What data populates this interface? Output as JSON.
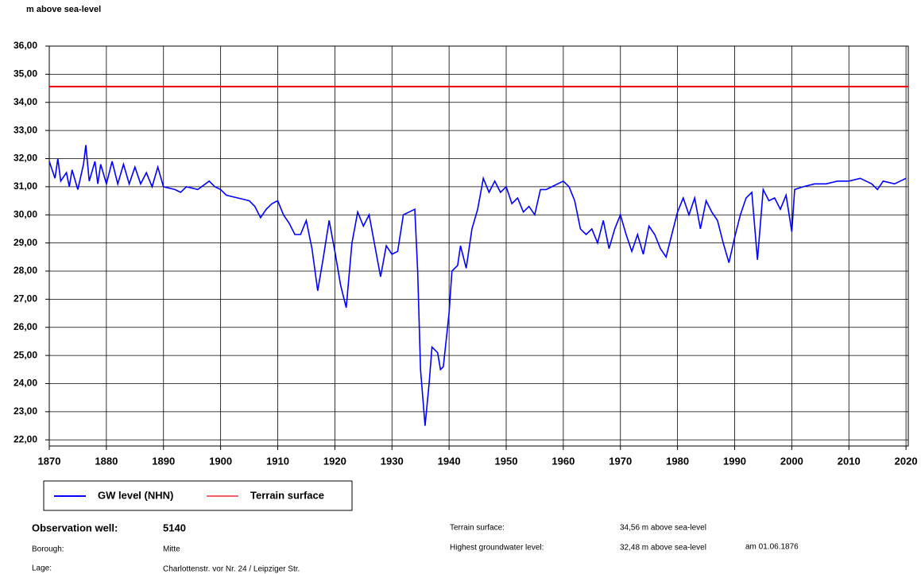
{
  "chart_data": {
    "type": "line",
    "y_label": "m above sea-level",
    "xlim": [
      1870,
      2020.4
    ],
    "ylim": [
      21.78,
      36
    ],
    "xticks": [
      1870,
      1880,
      1890,
      1900,
      1910,
      1920,
      1930,
      1940,
      1950,
      1960,
      1970,
      1980,
      1990,
      2000,
      2010,
      2020
    ],
    "yticks": [
      {
        "value": 22,
        "label": "22,00"
      },
      {
        "value": 23,
        "label": "23,00"
      },
      {
        "value": 24,
        "label": "24,00"
      },
      {
        "value": 25,
        "label": "25,00"
      },
      {
        "value": 26,
        "label": "26,00"
      },
      {
        "value": 27,
        "label": "27,00"
      },
      {
        "value": 28,
        "label": "28,00"
      },
      {
        "value": 29,
        "label": "29,00"
      },
      {
        "value": 30,
        "label": "30,00"
      },
      {
        "value": 31,
        "label": "31,00"
      },
      {
        "value": 32,
        "label": "32,00"
      },
      {
        "value": 33,
        "label": "33,00"
      },
      {
        "value": 34,
        "label": "34,00"
      },
      {
        "value": 35,
        "label": "35,00"
      },
      {
        "value": 36,
        "label": "36,00"
      }
    ],
    "grid": true,
    "series": [
      {
        "name": "GW level (NHN)",
        "color": "#0000ff",
        "x": [
          1870,
          1871,
          1871.5,
          1872,
          1873,
          1873.5,
          1874,
          1875,
          1876,
          1876.4,
          1877,
          1878,
          1878.5,
          1879,
          1880,
          1881,
          1882,
          1883,
          1884,
          1885,
          1886,
          1887,
          1888,
          1889,
          1890,
          1892,
          1893,
          1894,
          1896,
          1898,
          1899,
          1900,
          1901,
          1903,
          1905,
          1906,
          1907,
          1908,
          1909,
          1910,
          1911,
          1912,
          1913,
          1914,
          1915,
          1916,
          1917,
          1918,
          1919,
          1920,
          1921,
          1922,
          1923,
          1924,
          1925,
          1926,
          1927,
          1928,
          1929,
          1930,
          1931,
          1932,
          1934,
          1934.5,
          1935,
          1935.8,
          1936.5,
          1937,
          1938,
          1938.5,
          1939,
          1940,
          1940.5,
          1941.5,
          1942,
          1943,
          1944,
          1945,
          1946,
          1947,
          1948,
          1949,
          1950,
          1951,
          1952,
          1953,
          1954,
          1955,
          1956,
          1957,
          1958,
          1960,
          1961,
          1962,
          1963,
          1964,
          1965,
          1966,
          1967,
          1968,
          1969,
          1970,
          1971,
          1972,
          1973,
          1974,
          1975,
          1976,
          1977,
          1978,
          1979,
          1980,
          1981,
          1982,
          1983,
          1984,
          1985,
          1986,
          1987,
          1988,
          1989,
          1990,
          1991,
          1992,
          1993,
          1994,
          1995,
          1996,
          1997,
          1998,
          1999,
          2000,
          2000.5,
          2002,
          2004,
          2006,
          2008,
          2010,
          2012,
          2014,
          2015,
          2016,
          2018,
          2020
        ],
        "values": [
          31.9,
          31.3,
          32.0,
          31.2,
          31.5,
          31.0,
          31.6,
          30.9,
          31.8,
          32.48,
          31.2,
          31.9,
          31.1,
          31.8,
          31.1,
          31.9,
          31.1,
          31.8,
          31.1,
          31.7,
          31.1,
          31.5,
          31.0,
          31.7,
          31.0,
          30.9,
          30.8,
          31.0,
          30.9,
          31.2,
          31.0,
          30.9,
          30.7,
          30.6,
          30.5,
          30.3,
          29.9,
          30.2,
          30.4,
          30.5,
          30.0,
          29.7,
          29.3,
          29.3,
          29.8,
          28.8,
          27.3,
          28.5,
          29.8,
          28.7,
          27.5,
          26.7,
          29.0,
          30.1,
          29.6,
          30.0,
          28.9,
          27.8,
          28.9,
          28.6,
          28.7,
          30.0,
          30.2,
          28.0,
          24.5,
          22.5,
          24.0,
          25.3,
          25.1,
          24.5,
          24.6,
          26.5,
          28.0,
          28.2,
          28.9,
          28.1,
          29.5,
          30.2,
          31.3,
          30.8,
          31.2,
          30.8,
          31.0,
          30.4,
          30.6,
          30.1,
          30.3,
          30.0,
          30.9,
          30.9,
          31.0,
          31.2,
          31.0,
          30.5,
          29.5,
          29.3,
          29.5,
          29.0,
          29.8,
          28.8,
          29.5,
          30.0,
          29.3,
          28.7,
          29.3,
          28.6,
          29.6,
          29.3,
          28.8,
          28.5,
          29.3,
          30.1,
          30.6,
          30.0,
          30.6,
          29.5,
          30.5,
          30.1,
          29.8,
          29.0,
          28.3,
          29.2,
          30.0,
          30.6,
          30.8,
          28.4,
          30.9,
          30.5,
          30.6,
          30.2,
          30.7,
          29.4,
          30.9,
          31.0,
          31.1,
          31.1,
          31.2,
          31.2,
          31.3,
          31.1,
          30.9,
          31.2,
          31.1,
          31.3
        ]
      },
      {
        "name": "Terrain surface",
        "color": "#e8000b",
        "values": [
          34.56
        ]
      }
    ]
  },
  "info": {
    "well": {
      "label": "Observation well:",
      "value": "5140"
    },
    "borough": {
      "label": "Borough:",
      "value": "Mitte"
    },
    "lage": {
      "label": "Lage:",
      "value": "Charlottenstr. vor Nr. 24 / Leipziger Str."
    },
    "terrain": {
      "label": "Terrain surface:",
      "value": "34,56 m above sea-level"
    },
    "highest": {
      "label": "Highest groundwater level:",
      "value": "32,48 m above sea-level",
      "date": "am 01.06.1876"
    }
  }
}
